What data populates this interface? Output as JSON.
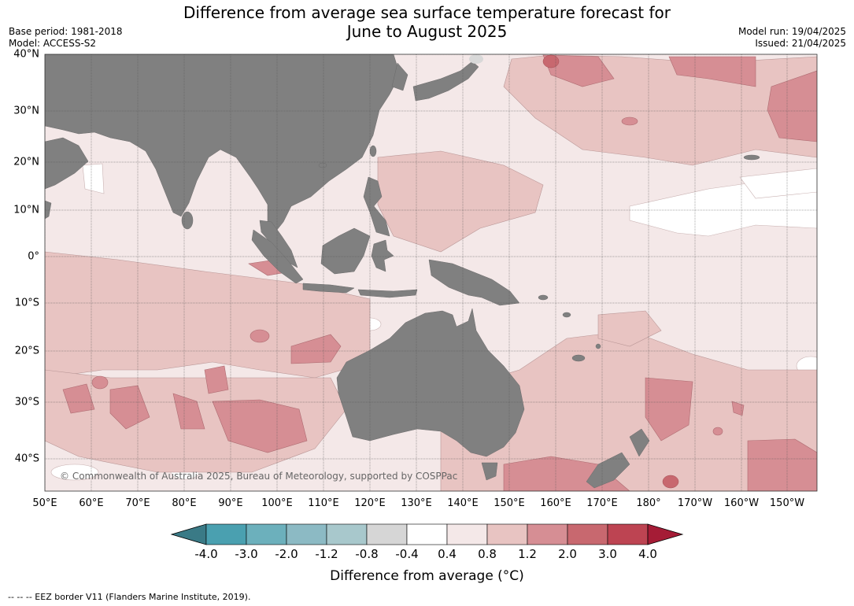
{
  "title_line1": "Difference from average sea surface temperature forecast for",
  "title_line2": "June to August 2025",
  "base_period": "Base period: 1981-2018",
  "model": "Model: ACCESS-S2",
  "model_run": "Model run: 19/04/2025",
  "issued": "Issued: 21/04/2025",
  "lat_labels": [
    "40°N",
    "30°N",
    "20°N",
    "10°N",
    "0°",
    "10°S",
    "20°S",
    "30°S",
    "40°S"
  ],
  "lon_labels": [
    "50°E",
    "60°E",
    "70°E",
    "80°E",
    "90°E",
    "100°E",
    "110°E",
    "120°E",
    "130°E",
    "140°E",
    "150°E",
    "160°E",
    "170°E",
    "180°",
    "170°W",
    "160°W",
    "150°W"
  ],
  "copyright": "© Commonwealth of Australia 2025, Bureau of Meteorology, supported by COSPPac",
  "colorbar": {
    "labels": [
      "-4.0",
      "-3.0",
      "-2.0",
      "-1.2",
      "-0.8",
      "-0.4",
      "0.4",
      "0.8",
      "1.2",
      "2.0",
      "3.0",
      "4.0"
    ],
    "colors": [
      "#3a7a86",
      "#4aa0b0",
      "#6cb0bc",
      "#8cbac4",
      "#a8c8cc",
      "#d6d6d6",
      "#ffffff",
      "#f4e8e8",
      "#e8c4c2",
      "#d68e94",
      "#c8686f",
      "#bd4452",
      "#a51c36"
    ],
    "title": "Difference from average (°C)"
  },
  "legend_footer": "--  --  -- EEZ border V11 (Flanders Marine Institute, 2019).",
  "colors": {
    "land": "#808080",
    "grid": "#555555"
  }
}
